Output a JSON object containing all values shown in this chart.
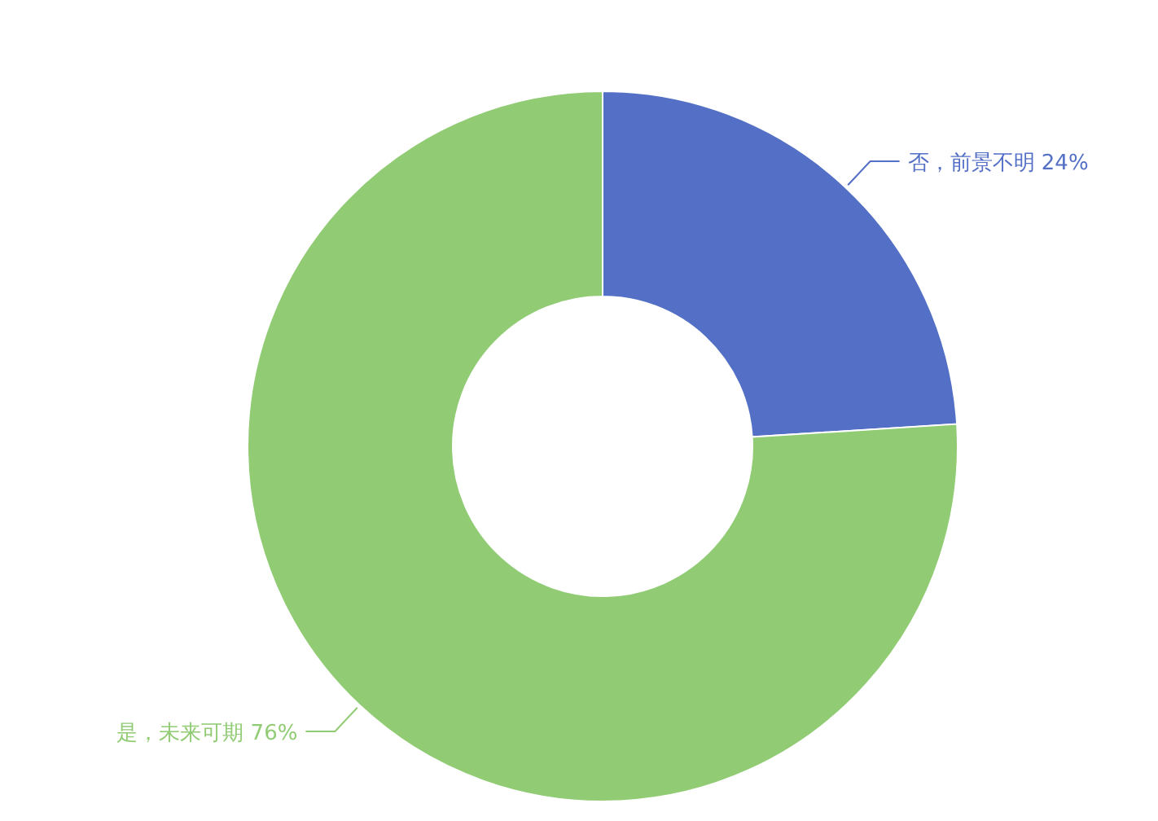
{
  "chart_data": {
    "type": "donut",
    "categories": [
      "否，前景不明",
      "是，未来可期"
    ],
    "values": [
      24,
      76
    ],
    "colors": [
      "#5470c6",
      "#91cc75"
    ],
    "value_labels": [
      "24%",
      "76%"
    ]
  }
}
